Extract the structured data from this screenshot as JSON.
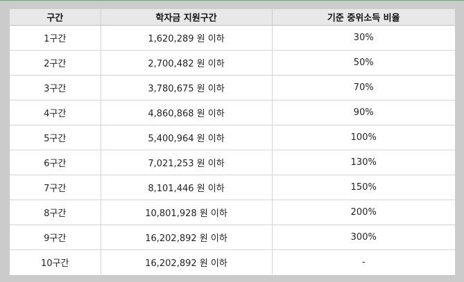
{
  "table": {
    "headers": [
      "구간",
      "학자금 지원구간",
      "기준 중위소득 비율"
    ],
    "rows": [
      {
        "bracket": "1구간",
        "amount": "1,620,289 원 이하",
        "ratio": "30%"
      },
      {
        "bracket": "2구간",
        "amount": "2,700,482 원 이하",
        "ratio": "50%"
      },
      {
        "bracket": "3구간",
        "amount": "3,780,675 원 이하",
        "ratio": "70%"
      },
      {
        "bracket": "4구간",
        "amount": "4,860,868 원 이하",
        "ratio": "90%"
      },
      {
        "bracket": "5구간",
        "amount": "5,400,964 원 이하",
        "ratio": "100%"
      },
      {
        "bracket": "6구간",
        "amount": "7,021,253 원 이하",
        "ratio": "130%"
      },
      {
        "bracket": "7구간",
        "amount": "8,101,446 원 이하",
        "ratio": "150%"
      },
      {
        "bracket": "8구간",
        "amount": "10,801,928 원 이하",
        "ratio": "200%"
      },
      {
        "bracket": "9구간",
        "amount": "16,202,892 원 이하",
        "ratio": "300%"
      },
      {
        "bracket": "10구간",
        "amount": "16,202,892 원 이하",
        "ratio": "-"
      }
    ]
  }
}
